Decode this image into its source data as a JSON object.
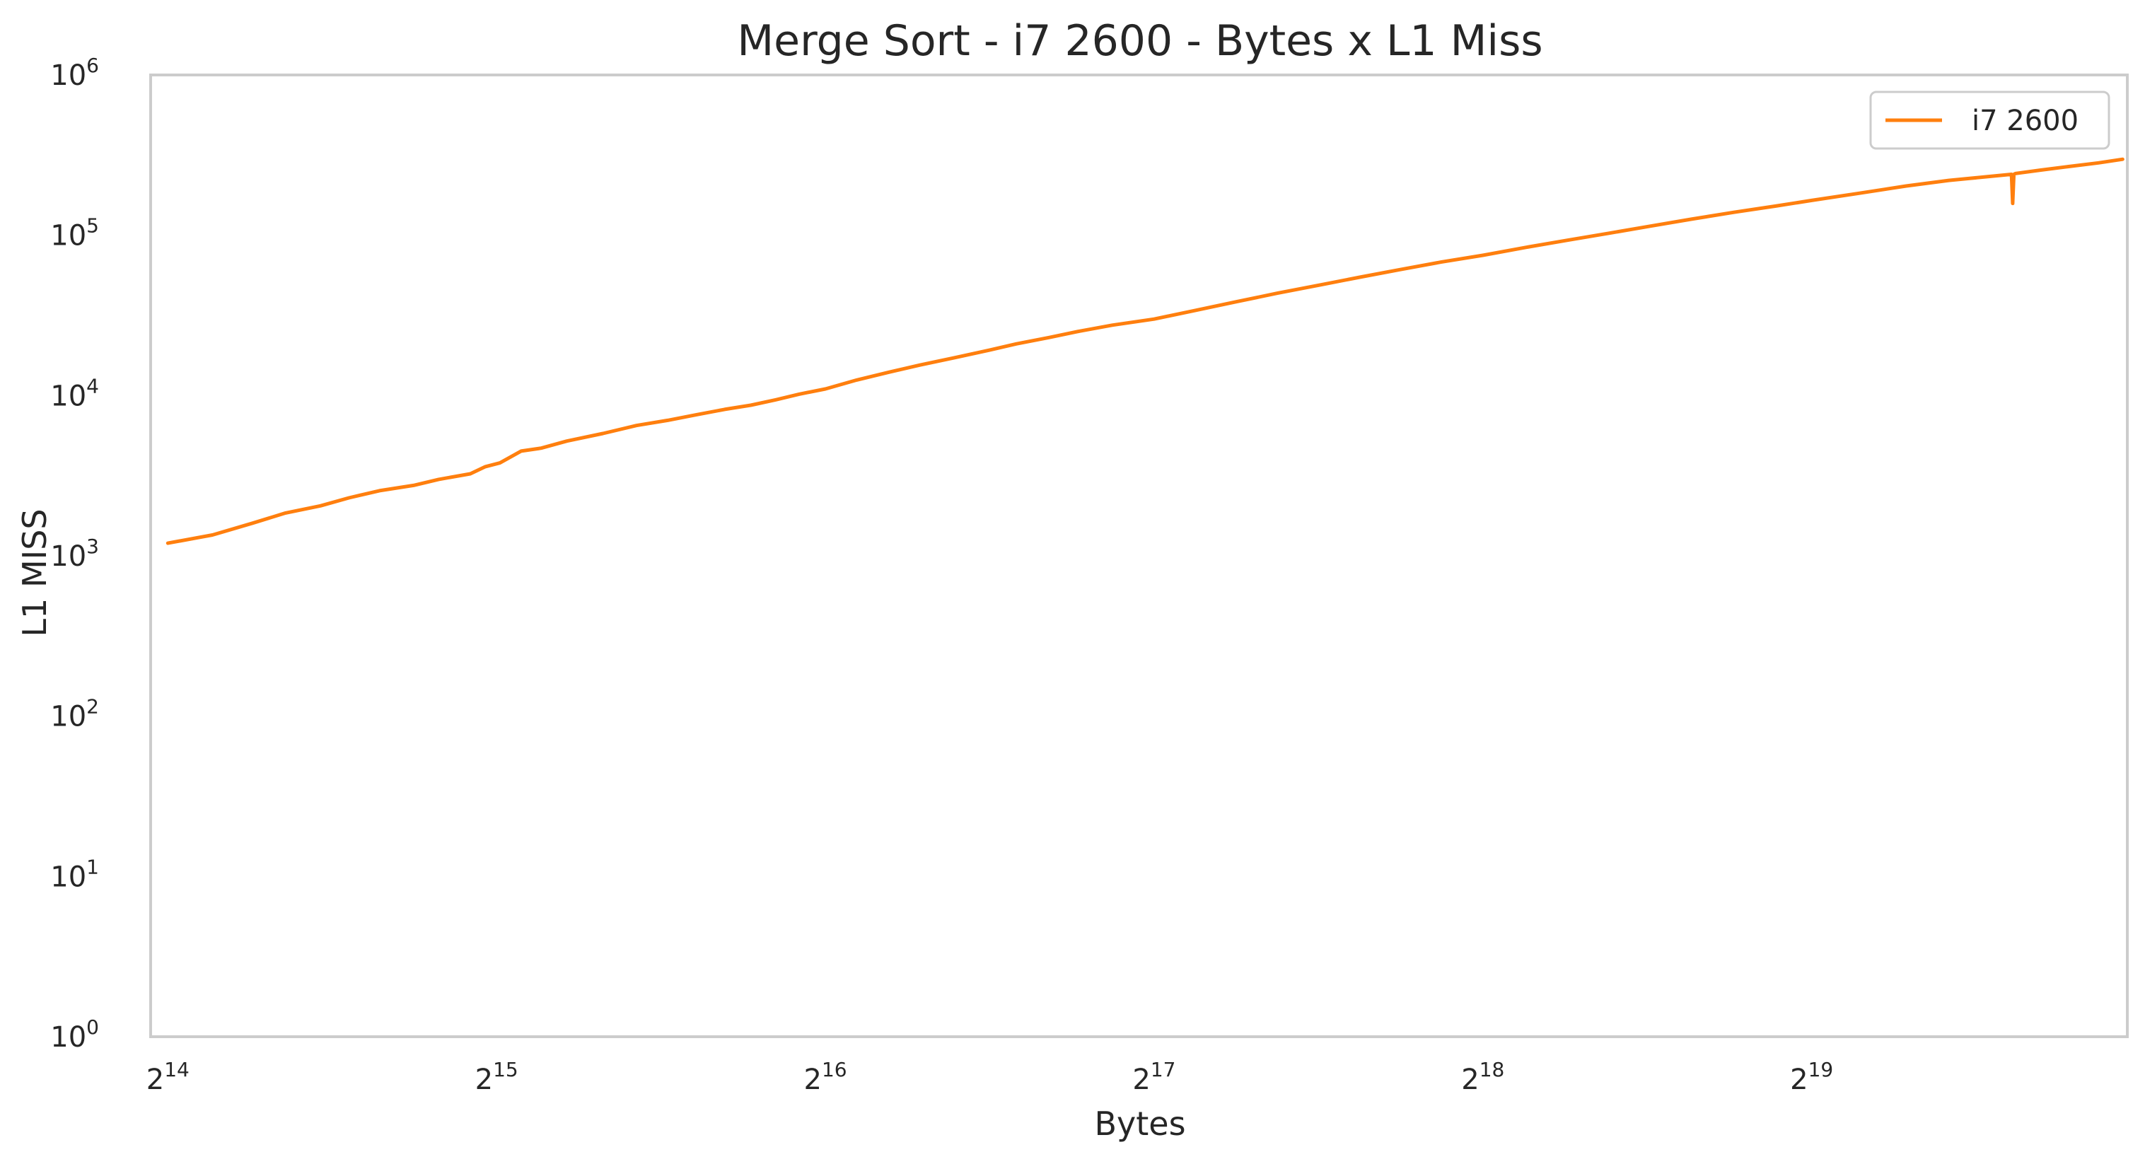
{
  "chart_data": {
    "type": "line",
    "title": "Merge Sort - i7 2600 - Bytes x L1 Miss",
    "xlabel": "Bytes",
    "ylabel": "L1 MISS",
    "x_scale": "log2",
    "y_scale": "log10",
    "xlim": [
      15800,
      1020000
    ],
    "ylim": [
      1,
      1000000
    ],
    "x_ticks": [
      {
        "base": "2",
        "exp": "14",
        "value": 16384
      },
      {
        "base": "2",
        "exp": "15",
        "value": 32768
      },
      {
        "base": "2",
        "exp": "16",
        "value": 65536
      },
      {
        "base": "2",
        "exp": "17",
        "value": 131072
      },
      {
        "base": "2",
        "exp": "18",
        "value": 262144
      },
      {
        "base": "2",
        "exp": "19",
        "value": 524288
      }
    ],
    "y_ticks": [
      {
        "base": "10",
        "exp": "0",
        "value": 1
      },
      {
        "base": "10",
        "exp": "1",
        "value": 10
      },
      {
        "base": "10",
        "exp": "2",
        "value": 100
      },
      {
        "base": "10",
        "exp": "3",
        "value": 1000
      },
      {
        "base": "10",
        "exp": "4",
        "value": 10000
      },
      {
        "base": "10",
        "exp": "5",
        "value": 100000
      },
      {
        "base": "10",
        "exp": "6",
        "value": 1000000
      }
    ],
    "grid": false,
    "legend_position": "top-right",
    "color": "#ff7f0e",
    "series": [
      {
        "name": "i7 2600",
        "x": [
          16384,
          18000,
          19600,
          21000,
          22600,
          24000,
          25600,
          27500,
          29000,
          31000,
          32000,
          33000,
          34500,
          36000,
          38000,
          41000,
          44000,
          47000,
          50000,
          53000,
          56000,
          59000,
          62000,
          65536,
          70000,
          75000,
          80000,
          86000,
          92000,
          98000,
          105000,
          112000,
          120000,
          131072,
          143000,
          156000,
          170000,
          186000,
          203000,
          220000,
          240000,
          262144,
          287000,
          313000,
          342000,
          373000,
          407000,
          445000,
          486000,
          524288,
          580000,
          640000,
          700000,
          760000,
          799000,
          801000,
          803000,
          806000,
          850000,
          900000,
          960000,
          1010000
        ],
        "y": [
          1200,
          1350,
          1600,
          1850,
          2050,
          2300,
          2550,
          2750,
          3000,
          3250,
          3600,
          3800,
          4500,
          4700,
          5200,
          5800,
          6500,
          7000,
          7600,
          8200,
          8700,
          9400,
          10200,
          11000,
          12500,
          14000,
          15500,
          17200,
          19000,
          21000,
          23000,
          25200,
          27500,
          30000,
          34000,
          38500,
          43500,
          49000,
          55000,
          61000,
          68000,
          75000,
          84000,
          93000,
          103000,
          114000,
          126000,
          139000,
          152000,
          165000,
          183000,
          203000,
          220000,
          232000,
          240000,
          158000,
          240000,
          243000,
          255000,
          268000,
          283000,
          298000
        ]
      }
    ]
  }
}
